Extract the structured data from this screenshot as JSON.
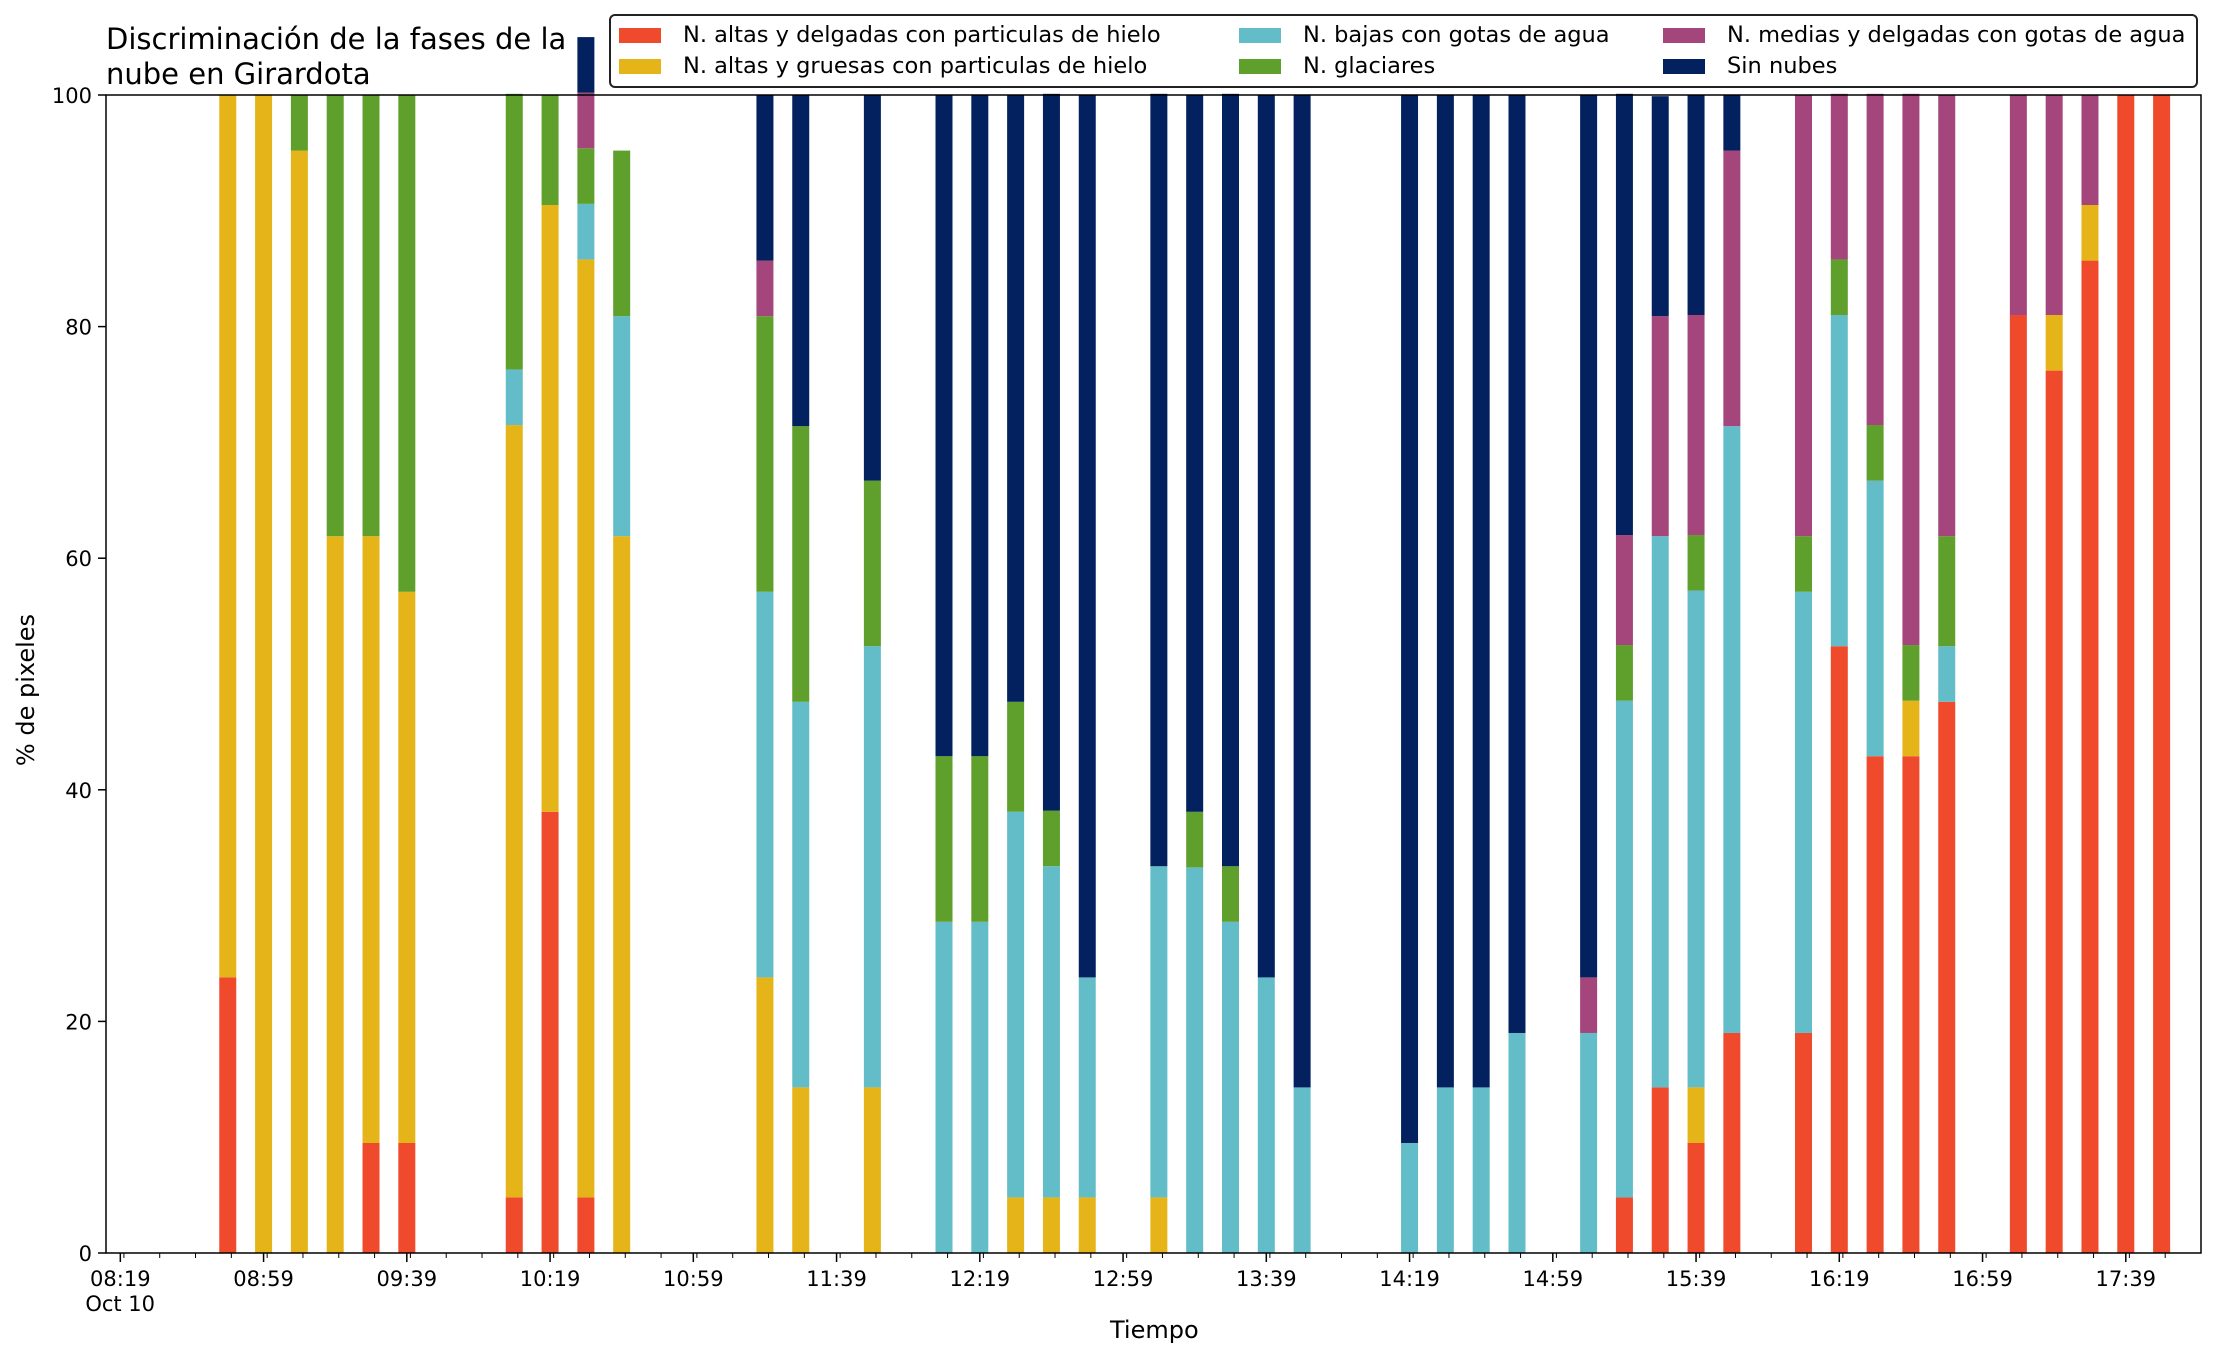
{
  "chart_data": {
    "type": "bar",
    "stacked": true,
    "title": "Discriminación de la fases de la\nnube en Girardota",
    "xlabel": "Tiempo",
    "ylabel": "% de pixeles",
    "ylim": [
      0,
      100
    ],
    "yticks": [
      "0",
      "20",
      "40",
      "60",
      "80",
      "100"
    ],
    "xticks": [
      "08:19\nOct 10",
      "08:59",
      "09:39",
      "10:19",
      "10:59",
      "11:39",
      "12:19",
      "12:59",
      "13:39",
      "14:19",
      "14:59",
      "15:39",
      "16:19",
      "16:59",
      "17:39"
    ],
    "xlim_minutes": [
      495,
      1080
    ],
    "legend_position": "top-right",
    "grid": false,
    "x": [
      "08:49",
      "08:59",
      "09:09",
      "09:19",
      "09:29",
      "09:39",
      "09:49",
      "10:09",
      "10:19",
      "10:29",
      "10:39",
      "11:19",
      "11:29",
      "11:49",
      "12:09",
      "12:19",
      "12:29",
      "12:39",
      "12:49",
      "13:09",
      "13:19",
      "13:29",
      "13:39",
      "13:49",
      "14:19",
      "14:29",
      "14:39",
      "14:49",
      "15:09",
      "15:19",
      "15:29",
      "15:39",
      "15:49",
      "16:09",
      "16:19",
      "16:29",
      "16:39",
      "16:49",
      "17:09",
      "17:19",
      "17:29",
      "17:39",
      "17:49"
    ],
    "series": [
      {
        "name": "N. altas y delgadas con particulas de hielo",
        "color": "#ee4a2b",
        "values": [
          23.8,
          0,
          0,
          0,
          9.5,
          9.5,
          0,
          4.8,
          38.1,
          4.8,
          0,
          0,
          0,
          0,
          0,
          0,
          0,
          0,
          0,
          0,
          0,
          0,
          0,
          0,
          0,
          0,
          0,
          0,
          0,
          4.8,
          14.3,
          9.5,
          19.0,
          19.0,
          52.4,
          42.9,
          42.9,
          47.6,
          81.0,
          76.2,
          85.7,
          100,
          100
        ]
      },
      {
        "name": "N. altas y gruesas con particulas de hielo",
        "color": "#e5b419",
        "values": [
          76.2,
          100,
          95.2,
          61.9,
          52.4,
          47.6,
          0,
          66.7,
          52.4,
          81.0,
          61.9,
          23.8,
          14.3,
          14.3,
          0,
          0,
          4.8,
          4.8,
          4.8,
          4.8,
          0,
          0,
          0,
          0,
          0,
          0,
          0,
          0,
          0,
          0,
          0,
          4.8,
          0,
          0,
          0,
          0,
          4.8,
          0,
          0,
          4.8,
          4.8,
          0,
          0
        ]
      },
      {
        "name": "N. bajas con gotas de agua",
        "color": "#63bdc9",
        "values": [
          0,
          0,
          0,
          0,
          0,
          0,
          0,
          4.8,
          0,
          4.8,
          19.0,
          33.3,
          33.3,
          38.1,
          28.6,
          28.6,
          33.3,
          28.6,
          19.0,
          28.6,
          33.3,
          28.6,
          23.8,
          14.3,
          9.5,
          14.3,
          14.3,
          19.0,
          19.0,
          42.9,
          47.6,
          42.9,
          52.4,
          38.1,
          28.6,
          23.8,
          0,
          4.8,
          0,
          0,
          0,
          0,
          0
        ]
      },
      {
        "name": "N. glaciares",
        "color": "#5f9f2b",
        "values": [
          0,
          0,
          4.8,
          38.1,
          38.1,
          42.9,
          0,
          23.8,
          9.5,
          4.8,
          14.3,
          23.8,
          23.8,
          14.3,
          14.3,
          14.3,
          9.5,
          4.8,
          0,
          0,
          4.8,
          4.8,
          0,
          0,
          0,
          0,
          0,
          0,
          0,
          4.8,
          0,
          4.8,
          0,
          4.8,
          4.8,
          4.8,
          4.8,
          9.5,
          0,
          0,
          0,
          0,
          0
        ]
      },
      {
        "name": "N. medias y delgadas con gotas de agua",
        "color": "#a4467c",
        "values": [
          0,
          0,
          0,
          0,
          0,
          0,
          0,
          0,
          0,
          4.8,
          0,
          4.8,
          0,
          0,
          0,
          0,
          0,
          0,
          0,
          0,
          0,
          0,
          0,
          0,
          0,
          0,
          0,
          0,
          4.8,
          9.5,
          19.0,
          19.0,
          23.8,
          38.1,
          14.3,
          28.6,
          47.6,
          38.1,
          19.0,
          19.0,
          9.5,
          0,
          0
        ]
      },
      {
        "name": "Sin nubes",
        "color": "#03215f",
        "values": [
          0,
          0,
          0,
          0,
          0,
          0,
          0,
          0,
          0,
          4.8,
          0,
          14.3,
          28.6,
          33.3,
          57.1,
          57.1,
          52.4,
          61.9,
          76.2,
          66.7,
          61.9,
          66.7,
          76.2,
          85.7,
          90.5,
          85.7,
          85.7,
          81.0,
          76.2,
          38.1,
          19.0,
          19.0,
          4.8,
          0,
          0,
          0,
          0,
          0,
          0,
          0,
          0,
          0,
          0
        ]
      }
    ],
    "legend_order": [
      0,
      1,
      2,
      3,
      4,
      5
    ]
  }
}
